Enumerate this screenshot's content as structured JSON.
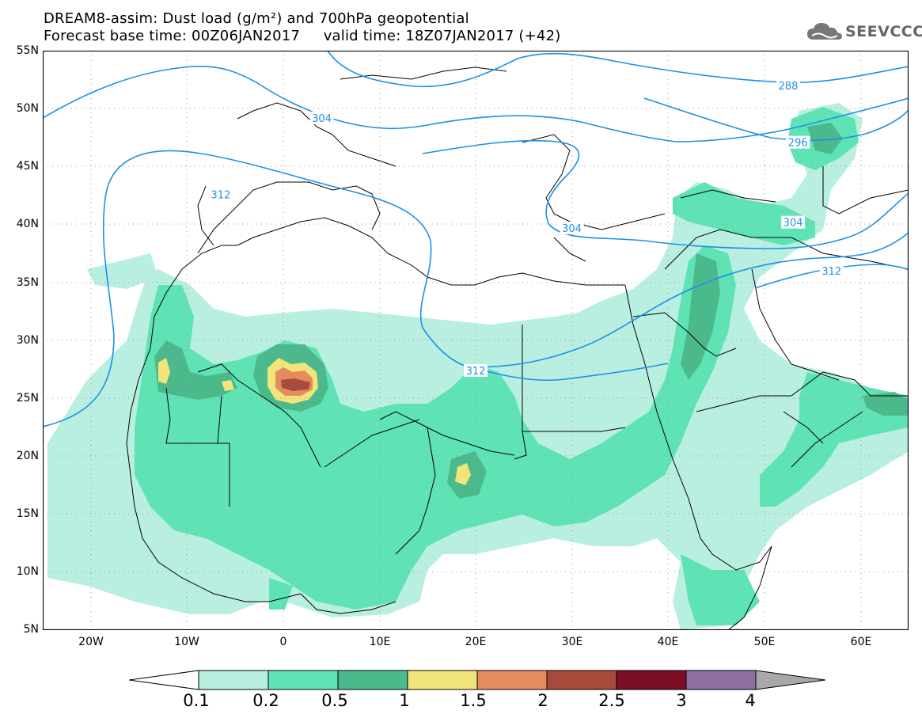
{
  "header": {
    "title_line1": "DREAM8-assim: Dust load (g/m²) and 700hPa geopotential",
    "title_line2": "Forecast base time: 00Z06JAN2017     valid time: 18Z07JAN2017 (+42)"
  },
  "logo": {
    "text": "SEEVCCC",
    "icon": "cloud-icon"
  },
  "map": {
    "lon_range": [
      -25,
      65
    ],
    "lat_range": [
      5,
      55
    ],
    "lat_labels": [
      "55N",
      "50N",
      "45N",
      "40N",
      "35N",
      "30N",
      "25N",
      "20N",
      "15N",
      "10N",
      "5N"
    ],
    "lon_labels": [
      "20W",
      "10W",
      "0",
      "10E",
      "20E",
      "30E",
      "40E",
      "50E",
      "60E"
    ],
    "contour_labels": [
      {
        "text": "288",
        "lon": 52.5,
        "lat": 52.0
      },
      {
        "text": "296",
        "lon": 53.5,
        "lat": 47.1
      },
      {
        "text": "304",
        "lon": 4.0,
        "lat": 49.2
      },
      {
        "text": "304",
        "lon": 30.0,
        "lat": 39.7
      },
      {
        "text": "304",
        "lon": 53.0,
        "lat": 40.2
      },
      {
        "text": "312",
        "lon": -6.5,
        "lat": 42.6
      },
      {
        "text": "312",
        "lon": 20.0,
        "lat": 27.4
      },
      {
        "text": "312",
        "lon": 57.0,
        "lat": 36.0
      }
    ],
    "contour_color": "#1e90e8",
    "coast_color": "#000000"
  },
  "colorbar": {
    "levels": [
      "0.1",
      "0.2",
      "0.5",
      "1",
      "1.5",
      "2",
      "2.5",
      "3",
      "4"
    ],
    "colors": [
      "#ffffff",
      "#b8efe1",
      "#5fe3b4",
      "#4cb98c",
      "#f0e47a",
      "#e58c5f",
      "#a84a3c",
      "#7c0e26",
      "#8c6ea0",
      "#a8a8a8"
    ]
  }
}
